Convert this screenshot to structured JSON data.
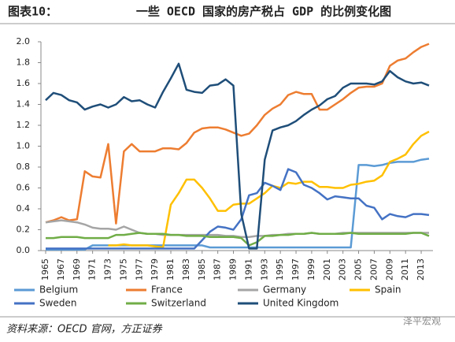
{
  "chart_data": {
    "type": "line",
    "title_prefix": "图表10：",
    "title": "一些 OECD 国家的房产税占 GDP 的比例变化图",
    "source": "资料来源：OECD 官网，方正证券",
    "watermark": "泽平宏观",
    "x": [
      1965,
      1966,
      1967,
      1968,
      1969,
      1970,
      1971,
      1972,
      1973,
      1974,
      1975,
      1976,
      1977,
      1978,
      1979,
      1980,
      1981,
      1982,
      1983,
      1984,
      1985,
      1986,
      1987,
      1988,
      1989,
      1990,
      1991,
      1992,
      1993,
      1994,
      1995,
      1996,
      1997,
      1998,
      1999,
      2000,
      2001,
      2002,
      2003,
      2004,
      2005,
      2006,
      2007,
      2008,
      2009,
      2010,
      2011,
      2012,
      2013,
      2014
    ],
    "xlim": [
      1965,
      2014
    ],
    "xticks": [
      1965,
      1967,
      1969,
      1971,
      1973,
      1975,
      1977,
      1979,
      1981,
      1983,
      1985,
      1987,
      1989,
      1991,
      1993,
      1995,
      1997,
      1999,
      2001,
      2003,
      2005,
      2007,
      2009,
      2011,
      2013
    ],
    "ylim": [
      0,
      2
    ],
    "yticks": [
      {
        "value": 0,
        "label": "0.0"
      },
      {
        "value": 0.2,
        "label": "0.2"
      },
      {
        "value": 0.4,
        "label": "0.4"
      },
      {
        "value": 0.6,
        "label": "0.6"
      },
      {
        "value": 0.8,
        "label": "0.8"
      },
      {
        "value": 1,
        "label": "1.0"
      },
      {
        "value": 1.2,
        "label": "1.2"
      },
      {
        "value": 1.4,
        "label": "1.4"
      },
      {
        "value": 1.6,
        "label": "1.6"
      },
      {
        "value": 1.8,
        "label": "1.8"
      },
      {
        "value": 2,
        "label": "2.0"
      }
    ],
    "grid": false,
    "legend": "bottom",
    "series": [
      {
        "name": "Belgium",
        "color": "#5b9bd5",
        "values": [
          0.01,
          0.01,
          0.01,
          0.01,
          0.01,
          0.01,
          0.05,
          0.05,
          0.05,
          0.05,
          0.05,
          0.05,
          0.05,
          0.05,
          0.05,
          0.05,
          0.05,
          0.05,
          0.05,
          0.05,
          0.05,
          0.03,
          0.03,
          0.03,
          0.03,
          0.03,
          0.03,
          0.03,
          0.03,
          0.03,
          0.03,
          0.03,
          0.03,
          0.03,
          0.03,
          0.03,
          0.03,
          0.03,
          0.03,
          0.03,
          0.82,
          0.82,
          0.81,
          0.82,
          0.84,
          0.85,
          0.85,
          0.85,
          0.87,
          0.88
        ]
      },
      {
        "name": "France",
        "color": "#ed7d31",
        "values": [
          0.27,
          0.29,
          0.32,
          0.29,
          0.3,
          0.76,
          0.71,
          0.7,
          1.02,
          0.26,
          0.95,
          1.02,
          0.95,
          0.95,
          0.95,
          0.98,
          0.98,
          0.97,
          1.03,
          1.13,
          1.17,
          1.18,
          1.18,
          1.16,
          1.13,
          1.1,
          1.12,
          1.2,
          1.3,
          1.36,
          1.4,
          1.49,
          1.52,
          1.5,
          1.5,
          1.35,
          1.35,
          1.4,
          1.45,
          1.51,
          1.56,
          1.57,
          1.57,
          1.6,
          1.77,
          1.82,
          1.84,
          1.9,
          1.95,
          1.98
        ]
      },
      {
        "name": "Germany",
        "color": "#a5a5a5",
        "values": [
          0.27,
          0.28,
          0.29,
          0.28,
          0.27,
          0.25,
          0.22,
          0.21,
          0.21,
          0.2,
          0.23,
          0.2,
          0.17,
          0.16,
          0.16,
          0.15,
          0.15,
          0.15,
          0.15,
          0.15,
          0.15,
          0.15,
          0.15,
          0.14,
          0.14,
          0.13,
          0.13,
          0.14,
          0.14,
          0.15,
          0.15,
          0.16,
          0.16,
          0.16,
          0.17,
          0.16,
          0.16,
          0.16,
          0.17,
          0.17,
          0.17,
          0.17,
          0.17,
          0.17,
          0.17,
          0.17,
          0.17,
          0.17,
          0.17,
          0.17
        ]
      },
      {
        "name": "Spain",
        "color": "#ffc000",
        "values": [
          null,
          null,
          null,
          null,
          null,
          null,
          null,
          null,
          0.05,
          0.05,
          0.06,
          0.05,
          0.05,
          0.05,
          0.04,
          0.03,
          0.44,
          0.55,
          0.68,
          0.68,
          0.6,
          0.5,
          0.38,
          0.38,
          0.44,
          0.45,
          0.45,
          0.5,
          0.55,
          0.62,
          0.6,
          0.65,
          0.64,
          0.66,
          0.66,
          0.61,
          0.61,
          0.6,
          0.6,
          0.63,
          0.64,
          0.66,
          0.67,
          0.72,
          0.85,
          0.88,
          0.92,
          1.02,
          1.1,
          1.14
        ]
      },
      {
        "name": "Sweden",
        "color": "#4472c4",
        "values": [
          0.02,
          0.02,
          0.02,
          0.02,
          0.02,
          0.02,
          0.02,
          0.02,
          0.02,
          0.02,
          0.02,
          0.02,
          0.02,
          0.02,
          0.02,
          0.02,
          0.02,
          0.02,
          0.02,
          0.02,
          0.1,
          0.18,
          0.23,
          0.22,
          0.2,
          0.3,
          0.53,
          0.55,
          0.65,
          0.62,
          0.58,
          0.78,
          0.75,
          0.63,
          0.6,
          0.55,
          0.49,
          0.52,
          0.51,
          0.5,
          0.5,
          0.43,
          0.41,
          0.3,
          0.35,
          0.33,
          0.32,
          0.35,
          0.35,
          0.34
        ]
      },
      {
        "name": "Switzerland",
        "color": "#70ad47",
        "values": [
          0.12,
          0.12,
          0.13,
          0.13,
          0.13,
          0.12,
          0.12,
          0.12,
          0.12,
          0.15,
          0.15,
          0.16,
          0.17,
          0.16,
          0.16,
          0.16,
          0.15,
          0.15,
          0.14,
          0.14,
          0.14,
          0.13,
          0.13,
          0.13,
          0.13,
          0.12,
          0.05,
          0.08,
          0.14,
          0.14,
          0.15,
          0.15,
          0.16,
          0.16,
          0.17,
          0.16,
          0.16,
          0.16,
          0.16,
          0.17,
          0.16,
          0.16,
          0.16,
          0.16,
          0.16,
          0.16,
          0.16,
          0.17,
          0.17,
          0.14
        ]
      },
      {
        "name": "United Kingdom",
        "color": "#1f4e79",
        "values": [
          1.44,
          1.51,
          1.49,
          1.44,
          1.42,
          1.35,
          1.38,
          1.4,
          1.37,
          1.4,
          1.47,
          1.43,
          1.44,
          1.4,
          1.37,
          1.52,
          1.65,
          1.79,
          1.54,
          1.52,
          1.51,
          1.58,
          1.59,
          1.64,
          1.58,
          0.35,
          0.02,
          0.02,
          0.87,
          1.15,
          1.18,
          1.2,
          1.24,
          1.3,
          1.35,
          1.39,
          1.45,
          1.48,
          1.56,
          1.6,
          1.6,
          1.6,
          1.59,
          1.62,
          1.72,
          1.66,
          1.62,
          1.6,
          1.61,
          1.58
        ]
      }
    ]
  }
}
